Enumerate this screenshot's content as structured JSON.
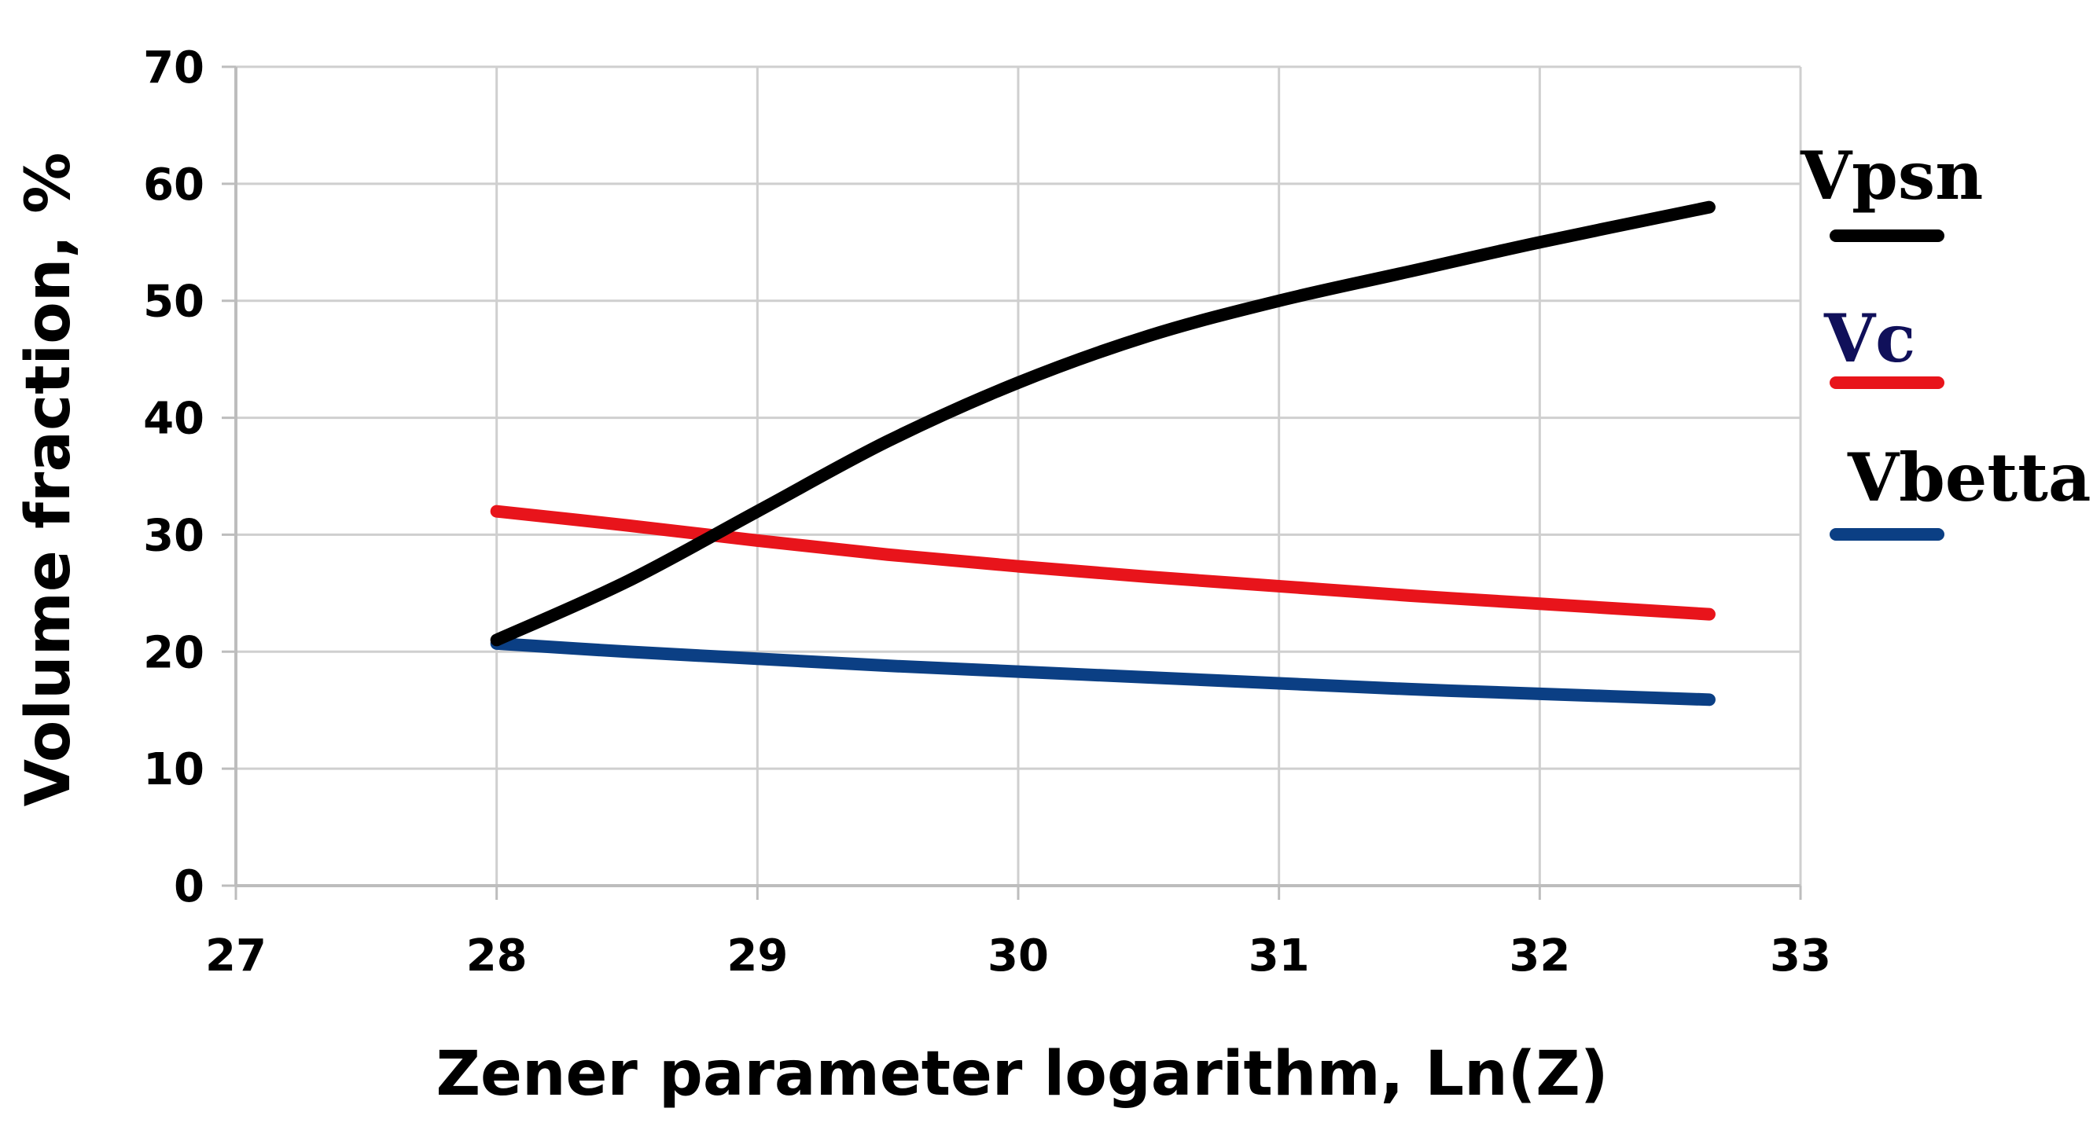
{
  "chart_data": {
    "type": "line",
    "title": "",
    "xlabel": "Zener parameter logarithm, Ln(Z)",
    "ylabel": "Volume fraction, %",
    "xlim": [
      27,
      33
    ],
    "ylim": [
      0,
      70
    ],
    "x_ticks": [
      27,
      28,
      29,
      30,
      31,
      32,
      33
    ],
    "y_ticks": [
      0,
      10,
      20,
      30,
      40,
      50,
      60,
      70
    ],
    "grid": true,
    "legend_position": "right",
    "series": [
      {
        "name": "Vpsn",
        "color": "#000000",
        "x": [
          28.0,
          28.5,
          29.0,
          29.5,
          30.0,
          30.5,
          31.0,
          31.5,
          32.0,
          32.65
        ],
        "y": [
          21,
          26,
          32,
          38,
          43,
          47,
          50,
          52.5,
          55,
          58
        ]
      },
      {
        "name": "Vc",
        "color": "#e8141b",
        "x": [
          28.0,
          28.5,
          29.0,
          29.5,
          30.0,
          30.5,
          31.0,
          31.5,
          32.0,
          32.65
        ],
        "y": [
          32,
          30.8,
          29.5,
          28.3,
          27.3,
          26.4,
          25.6,
          24.8,
          24.1,
          23.2
        ]
      },
      {
        "name": "Vbetta",
        "color": "#0b3f84",
        "x": [
          28.0,
          28.5,
          29.0,
          29.5,
          30.0,
          30.5,
          31.0,
          31.5,
          32.0,
          32.65
        ],
        "y": [
          20.7,
          20.0,
          19.4,
          18.8,
          18.3,
          17.8,
          17.3,
          16.8,
          16.4,
          15.9
        ]
      }
    ]
  }
}
